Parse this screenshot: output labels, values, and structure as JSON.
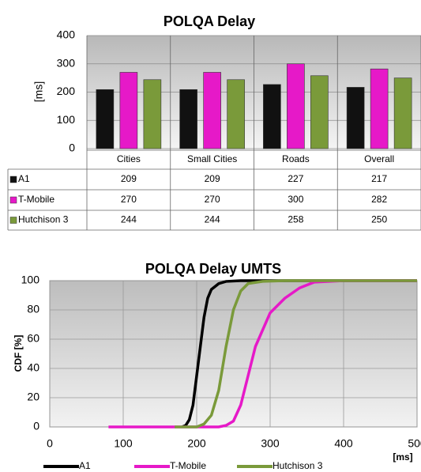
{
  "chart_data": [
    {
      "type": "bar",
      "title": "POLQA Delay",
      "y_label": "[ms]",
      "categories": [
        "Cities",
        "Small Cities",
        "Roads",
        "Overall"
      ],
      "series": [
        {
          "name": "A1",
          "color": "#111111",
          "values": [
            209,
            209,
            227,
            217
          ]
        },
        {
          "name": "T-Mobile",
          "color": "#e619c8",
          "values": [
            270,
            270,
            300,
            282
          ]
        },
        {
          "name": "Hutchison 3",
          "color": "#7a9a3a",
          "values": [
            244,
            244,
            258,
            250
          ]
        }
      ],
      "ylim": [
        0,
        400
      ],
      "yticks": [
        0,
        100,
        200,
        300,
        400
      ],
      "grid": true
    },
    {
      "type": "line",
      "title": "POLQA Delay UMTS",
      "y_label": "CDF [%]",
      "x_label": "[ms]",
      "series": [
        {
          "name": "A1",
          "color": "#000000",
          "x": [
            180,
            185,
            190,
            195,
            200,
            205,
            210,
            215,
            220,
            230,
            240,
            260,
            500
          ],
          "values": [
            0,
            1,
            5,
            15,
            35,
            55,
            75,
            88,
            94,
            98,
            99.5,
            100,
            100
          ]
        },
        {
          "name": "T-Mobile",
          "color": "#e619c8",
          "x": [
            80,
            150,
            230,
            240,
            250,
            260,
            270,
            280,
            300,
            320,
            340,
            360,
            400,
            500
          ],
          "values": [
            0,
            0,
            0,
            1,
            4,
            15,
            35,
            55,
            78,
            88,
            95,
            99,
            100,
            100
          ]
        },
        {
          "name": "Hutchison 3",
          "color": "#7a9a3a",
          "x": [
            170,
            200,
            210,
            220,
            230,
            240,
            250,
            260,
            270,
            290,
            320,
            500
          ],
          "values": [
            0,
            0,
            2,
            8,
            25,
            55,
            80,
            93,
            98,
            99.5,
            100,
            100
          ]
        }
      ],
      "xlim": [
        0,
        500
      ],
      "xticks": [
        0,
        100,
        200,
        300,
        400,
        500
      ],
      "ylim": [
        0,
        100
      ],
      "yticks": [
        0,
        20,
        40,
        60,
        80,
        100
      ],
      "grid": true
    }
  ]
}
